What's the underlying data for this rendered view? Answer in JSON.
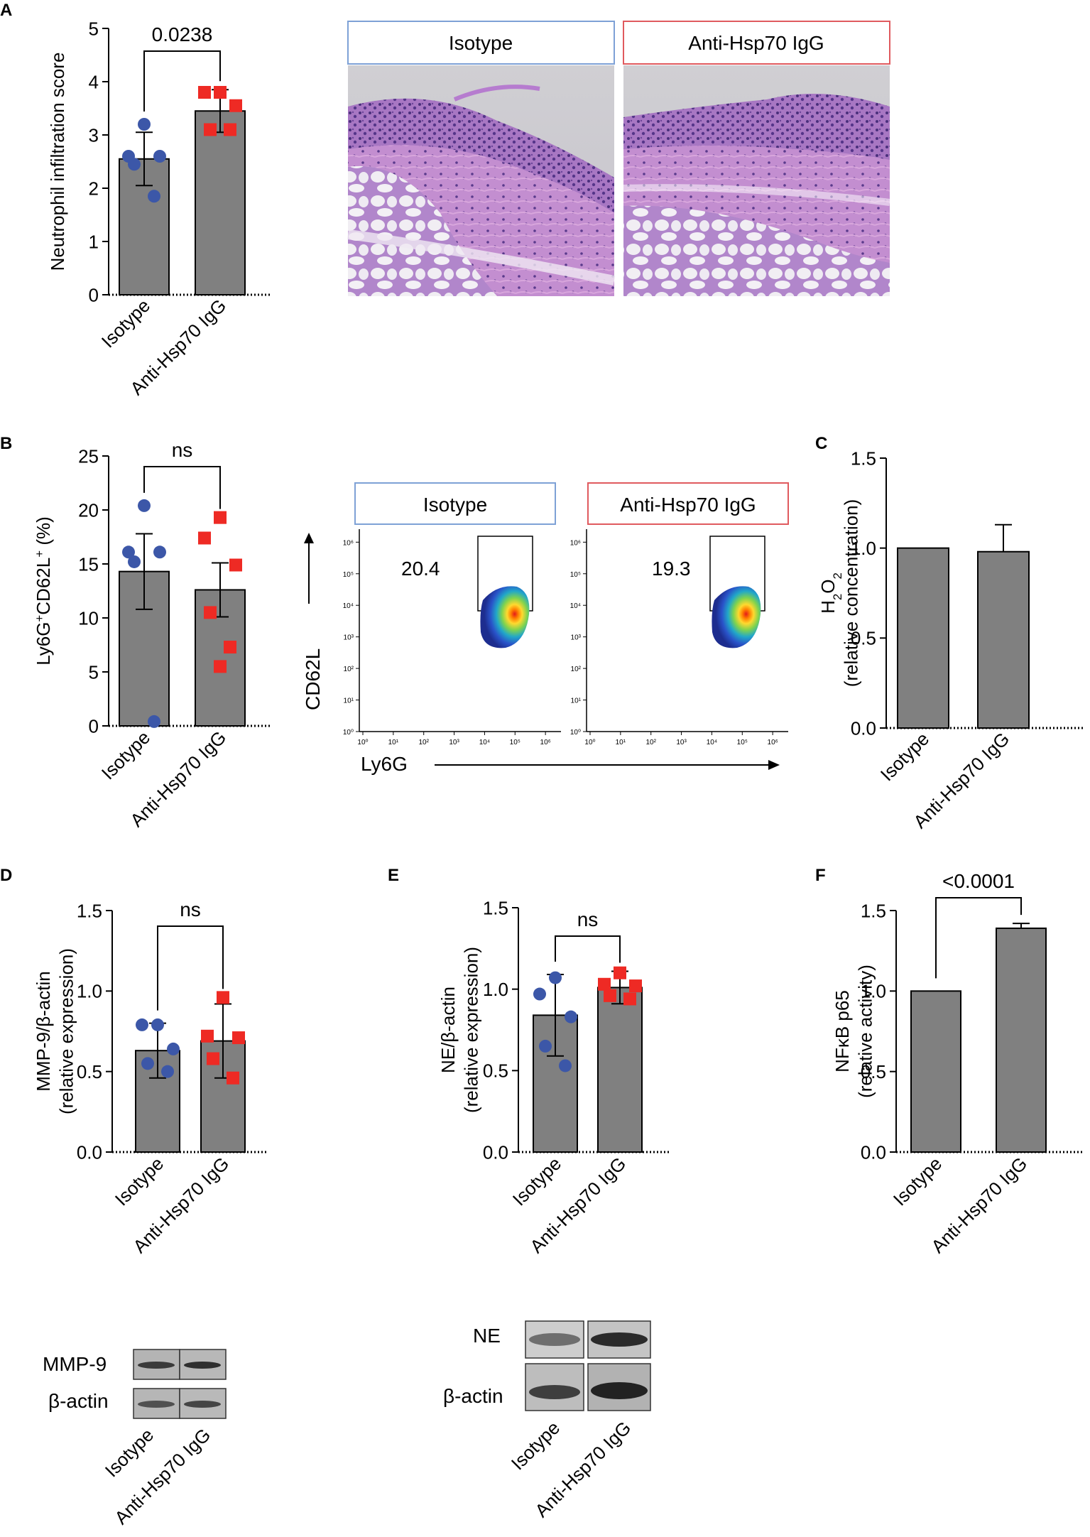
{
  "panel_letters": [
    "A",
    "B",
    "C",
    "D",
    "E",
    "F"
  ],
  "groups": [
    "Isotype",
    "Anti-Hsp70 IgG"
  ],
  "colors": {
    "bar": "#808080",
    "isotype_marker": "#3c57a8",
    "anti_marker": "#ee2a24",
    "isotype_box": "#7ea1d6",
    "anti_box": "#e05a5e"
  },
  "chart_data": [
    {
      "id": "A",
      "type": "bar",
      "ylabel": "Neutrophil infiltration score",
      "ylim": [
        0,
        5
      ],
      "yticks": [
        0,
        1,
        2,
        3,
        4,
        5
      ],
      "tick_labels": [
        "0",
        "1",
        "2",
        "3",
        "4",
        "5"
      ],
      "categories": [
        "Isotype",
        "Anti-Hsp70 IgG"
      ],
      "values": [
        2.55,
        3.45
      ],
      "errors": [
        0.5,
        0.4
      ],
      "points": [
        [
          3.2,
          2.6,
          2.6,
          2.45,
          1.85
        ],
        [
          3.8,
          3.8,
          3.55,
          3.1,
          3.1
        ]
      ],
      "comparison": "0.0238"
    },
    {
      "id": "B",
      "type": "bar",
      "ylabel": "Ly6G+CD62L+ (%)",
      "ylim": [
        0,
        25
      ],
      "yticks": [
        0,
        5,
        10,
        15,
        20,
        25
      ],
      "tick_labels": [
        "0",
        "5",
        "10",
        "15",
        "20",
        "25"
      ],
      "categories": [
        "Isotype",
        "Anti-Hsp70 IgG"
      ],
      "values": [
        14.3,
        12.6
      ],
      "errors": [
        3.5,
        2.5
      ],
      "points": [
        [
          20.4,
          16.1,
          16.1,
          15.2,
          0.4
        ],
        [
          19.3,
          17.4,
          14.9,
          10.5,
          7.3,
          5.5
        ]
      ],
      "comparison": "ns"
    },
    {
      "id": "C",
      "type": "bar",
      "ylabel": "H2O2",
      "ylabel_sub": "(relative concentration)",
      "ylim": [
        0,
        1.5
      ],
      "yticks": [
        0,
        0.5,
        1.0,
        1.5
      ],
      "tick_labels": [
        "0.0",
        "0.5",
        "1.0",
        "1.5"
      ],
      "categories": [
        "Isotype",
        "Anti-Hsp70 IgG"
      ],
      "values": [
        1.0,
        0.98
      ],
      "errors": [
        0,
        0.15
      ],
      "points": [
        [],
        []
      ]
    },
    {
      "id": "D",
      "type": "bar",
      "ylabel": "MMP-9/β-actin",
      "ylabel_sub": "(relative expression)",
      "ylim": [
        0,
        1.5
      ],
      "yticks": [
        0,
        0.5,
        1.0,
        1.5
      ],
      "tick_labels": [
        "0.0",
        "0.5",
        "1.0",
        "1.5"
      ],
      "categories": [
        "Isotype",
        "Anti-Hsp70 IgG"
      ],
      "values": [
        0.63,
        0.69
      ],
      "errors": [
        0.17,
        0.23
      ],
      "points": [
        [
          0.79,
          0.79,
          0.64,
          0.55,
          0.5
        ],
        [
          0.96,
          0.72,
          0.71,
          0.58,
          0.46
        ]
      ],
      "comparison": "ns"
    },
    {
      "id": "E",
      "type": "bar",
      "ylabel": "NE/β-actin",
      "ylabel_sub": "(relative expression)",
      "ylim": [
        0,
        1.5
      ],
      "yticks": [
        0,
        0.5,
        1.0,
        1.5
      ],
      "tick_labels": [
        "0.0",
        "0.5",
        "1.0",
        "1.5"
      ],
      "categories": [
        "Isotype",
        "Anti-Hsp70 IgG"
      ],
      "values": [
        0.84,
        1.01
      ],
      "errors": [
        0.25,
        0.1
      ],
      "points": [
        [
          1.07,
          0.97,
          0.83,
          0.65,
          0.53
        ],
        [
          1.1,
          1.03,
          1.02,
          0.96,
          0.94
        ]
      ],
      "comparison": "ns"
    },
    {
      "id": "F",
      "type": "bar",
      "ylabel": "NFκB p65",
      "ylabel_sub": "(relative activity)",
      "ylim": [
        0,
        1.5
      ],
      "yticks": [
        0,
        0.5,
        1.0,
        1.5
      ],
      "tick_labels": [
        "0.0",
        "0.5",
        "1.0",
        "1.5"
      ],
      "categories": [
        "Isotype",
        "Anti-Hsp70 IgG"
      ],
      "values": [
        1.0,
        1.39
      ],
      "errors": [
        0,
        0.03
      ],
      "points": [
        [],
        []
      ],
      "comparison": "<0.0001"
    }
  ],
  "histology": {
    "labels": [
      "Isotype",
      "Anti-Hsp70 IgG"
    ]
  },
  "flow": {
    "labels": [
      "Isotype",
      "Anti-Hsp70 IgG"
    ],
    "gate_values": [
      "20.4",
      "19.3"
    ],
    "y_axis_label": "CD62L",
    "x_axis_label": "Ly6G",
    "tick_labels": [
      "10⁰",
      "10¹",
      "10²",
      "10³",
      "10⁴",
      "10⁵",
      "10⁶"
    ]
  },
  "blots": {
    "mmp9_labels": [
      "MMP-9",
      "β-actin"
    ],
    "ne_labels": [
      "NE",
      "β-actin"
    ],
    "lanes": [
      "Isotype",
      "Anti-Hsp70 IgG"
    ]
  }
}
